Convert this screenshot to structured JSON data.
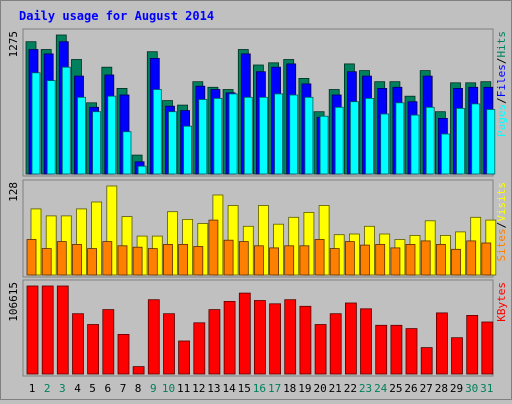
{
  "chart_data": {
    "type": "bar",
    "title": "Daily usage for August 2014",
    "categories": [
      "1",
      "2",
      "3",
      "4",
      "5",
      "6",
      "7",
      "8",
      "9",
      "10",
      "11",
      "12",
      "13",
      "14",
      "15",
      "16",
      "17",
      "18",
      "19",
      "20",
      "21",
      "22",
      "23",
      "24",
      "25",
      "26",
      "27",
      "28",
      "29",
      "30",
      "31"
    ],
    "weekend_days": [
      "2",
      "3",
      "9",
      "10",
      "16",
      "17",
      "23",
      "24",
      "30",
      "31"
    ],
    "colors": {
      "background": "#c0c0c0",
      "title": "#0000ff",
      "weekday_label": "#000000",
      "weekend_label": "#00805c",
      "hits": "#00805c",
      "files": "#0000ff",
      "pages": "#00ffff",
      "visits": "#ffff00",
      "sites": "#ff8000",
      "kbytes": "#ff0000"
    },
    "panels": [
      {
        "id": "traffic",
        "max_label": "1275",
        "legend": [
          "Pages",
          "/",
          "Files",
          "/",
          "Hits"
        ],
        "series": [
          {
            "name": "Hits",
            "values": [
              1190,
              1120,
              1250,
              1030,
              640,
              960,
              770,
              170,
              1100,
              660,
              620,
              830,
              780,
              760,
              1120,
              980,
              1000,
              1030,
              860,
              560,
              760,
              990,
              930,
              830,
              830,
              700,
              930,
              560,
              820,
              820,
              830
            ]
          },
          {
            "name": "Files",
            "values": [
              1120,
              1080,
              1190,
              880,
              600,
              890,
              710,
              110,
              1040,
              610,
              570,
              790,
              760,
              730,
              1080,
              920,
              960,
              990,
              810,
              510,
              710,
              920,
              880,
              770,
              780,
              650,
              880,
              500,
              770,
              780,
              780
            ]
          },
          {
            "name": "Pages",
            "values": [
              910,
              840,
              960,
              690,
              560,
              700,
              380,
              70,
              760,
              560,
              430,
              670,
              680,
              720,
              690,
              690,
              720,
              710,
              690,
              520,
              600,
              650,
              680,
              540,
              640,
              530,
              600,
              360,
              590,
              630,
              580
            ]
          }
        ]
      },
      {
        "id": "visitors",
        "max_label": "128",
        "legend": [
          "Sites",
          "/",
          "Visits"
        ],
        "series": [
          {
            "name": "Visits",
            "values": [
              95,
              85,
              85,
              95,
              105,
              128,
              84,
              56,
              56,
              91,
              80,
              74,
              115,
              100,
              70,
              100,
              73,
              83,
              90,
              100,
              58,
              59,
              70,
              59,
              51,
              57,
              78,
              57,
              62,
              83,
              79
            ]
          },
          {
            "name": "Sites",
            "values": [
              51,
              38,
              48,
              44,
              38,
              48,
              42,
              40,
              38,
              44,
              44,
              41,
              79,
              50,
              48,
              42,
              39,
              42,
              42,
              51,
              38,
              48,
              43,
              44,
              39,
              44,
              49,
              44,
              37,
              49,
              46
            ]
          }
        ]
      },
      {
        "id": "kbytes",
        "max_label": "106615",
        "legend": [
          "KBytes"
        ],
        "series": [
          {
            "name": "KBytes",
            "values": [
              106615,
              106615,
              106615,
              73000,
              60000,
              78000,
              48000,
              9000,
              90000,
              73000,
              40000,
              62000,
              78000,
              88000,
              98000,
              89000,
              85000,
              90000,
              82000,
              60000,
              73000,
              86000,
              79000,
              59000,
              59000,
              55000,
              32000,
              74000,
              44000,
              71000,
              63000
            ]
          }
        ]
      }
    ]
  }
}
